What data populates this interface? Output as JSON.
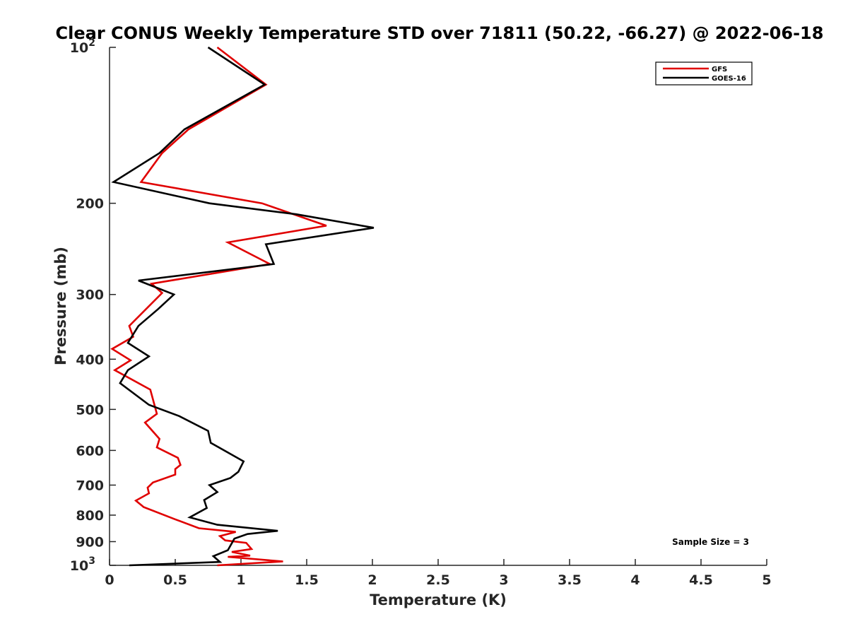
{
  "chart_data": {
    "type": "line",
    "title": "Clear CONUS Weekly Temperature STD over 71811 (50.22, -66.27) @ 2022-06-18",
    "xlabel": "Temperature (K)",
    "ylabel": "Pressure (mb)",
    "xlim": [
      0,
      5
    ],
    "ylim": [
      100,
      1000
    ],
    "y_scale": "log",
    "y_reversed": true,
    "grid": false,
    "legend_position": "top-right",
    "x_ticks": [
      {
        "value": 0,
        "label": "0"
      },
      {
        "value": 0.5,
        "label": "0.5"
      },
      {
        "value": 1,
        "label": "1"
      },
      {
        "value": 1.5,
        "label": "1.5"
      },
      {
        "value": 2,
        "label": "2"
      },
      {
        "value": 2.5,
        "label": "2.5"
      },
      {
        "value": 3,
        "label": "3"
      },
      {
        "value": 3.5,
        "label": "3.5"
      },
      {
        "value": 4,
        "label": "4"
      },
      {
        "value": 4.5,
        "label": "4.5"
      },
      {
        "value": 5,
        "label": "5"
      }
    ],
    "y_ticks": [
      {
        "value": 100,
        "base": "10",
        "exp": "2"
      },
      {
        "value": 200,
        "label": "200"
      },
      {
        "value": 300,
        "label": "300"
      },
      {
        "value": 400,
        "label": "400"
      },
      {
        "value": 500,
        "label": "500"
      },
      {
        "value": 600,
        "label": "600"
      },
      {
        "value": 700,
        "label": "700"
      },
      {
        "value": 800,
        "label": "800"
      },
      {
        "value": 900,
        "label": "900"
      },
      {
        "value": 1000,
        "base": "10",
        "exp": "3"
      }
    ],
    "series": [
      {
        "name": "GFS",
        "color": "#e00000",
        "points": [
          [
            0.82,
            100
          ],
          [
            1.19,
            118
          ],
          [
            0.6,
            144
          ],
          [
            0.4,
            160
          ],
          [
            0.24,
            182
          ],
          [
            1.16,
            200
          ],
          [
            1.65,
            221
          ],
          [
            0.9,
            238
          ],
          [
            1.22,
            262
          ],
          [
            0.32,
            286
          ],
          [
            0.4,
            298
          ],
          [
            0.15,
            345
          ],
          [
            0.18,
            362
          ],
          [
            0.02,
            382
          ],
          [
            0.16,
            402
          ],
          [
            0.04,
            420
          ],
          [
            0.31,
            458
          ],
          [
            0.36,
            510
          ],
          [
            0.27,
            530
          ],
          [
            0.38,
            570
          ],
          [
            0.36,
            592
          ],
          [
            0.52,
            620
          ],
          [
            0.54,
            640
          ],
          [
            0.5,
            652
          ],
          [
            0.5,
            668
          ],
          [
            0.33,
            692
          ],
          [
            0.29,
            708
          ],
          [
            0.3,
            726
          ],
          [
            0.2,
            750
          ],
          [
            0.26,
            772
          ],
          [
            0.5,
            815
          ],
          [
            0.68,
            848
          ],
          [
            0.96,
            862
          ],
          [
            0.84,
            878
          ],
          [
            0.88,
            895
          ],
          [
            1.04,
            905
          ],
          [
            1.08,
            930
          ],
          [
            0.93,
            942
          ],
          [
            1.07,
            958
          ],
          [
            0.9,
            963
          ],
          [
            1.32,
            983
          ],
          [
            0.82,
            1000
          ]
        ]
      },
      {
        "name": "GOES-16",
        "color": "#000000",
        "points": [
          [
            0.75,
            100
          ],
          [
            1.18,
            118
          ],
          [
            0.57,
            144
          ],
          [
            0.38,
            160
          ],
          [
            0.03,
            182
          ],
          [
            0.76,
            200
          ],
          [
            1.42,
            210
          ],
          [
            2.01,
            223
          ],
          [
            1.19,
            240
          ],
          [
            1.25,
            262
          ],
          [
            0.22,
            282
          ],
          [
            0.49,
            300
          ],
          [
            0.37,
            320
          ],
          [
            0.22,
            345
          ],
          [
            0.14,
            372
          ],
          [
            0.3,
            395
          ],
          [
            0.14,
            420
          ],
          [
            0.08,
            445
          ],
          [
            0.3,
            490
          ],
          [
            0.53,
            515
          ],
          [
            0.75,
            550
          ],
          [
            0.77,
            580
          ],
          [
            1.02,
            630
          ],
          [
            0.98,
            660
          ],
          [
            0.92,
            678
          ],
          [
            0.76,
            700
          ],
          [
            0.82,
            722
          ],
          [
            0.72,
            748
          ],
          [
            0.74,
            775
          ],
          [
            0.61,
            808
          ],
          [
            0.82,
            835
          ],
          [
            1.28,
            858
          ],
          [
            1.05,
            870
          ],
          [
            0.95,
            888
          ],
          [
            0.9,
            935
          ],
          [
            0.79,
            960
          ],
          [
            0.84,
            985
          ],
          [
            0.15,
            1000
          ]
        ]
      }
    ],
    "annotations": [
      {
        "text": "Sample Size = 3",
        "position": "lower-right"
      }
    ]
  }
}
